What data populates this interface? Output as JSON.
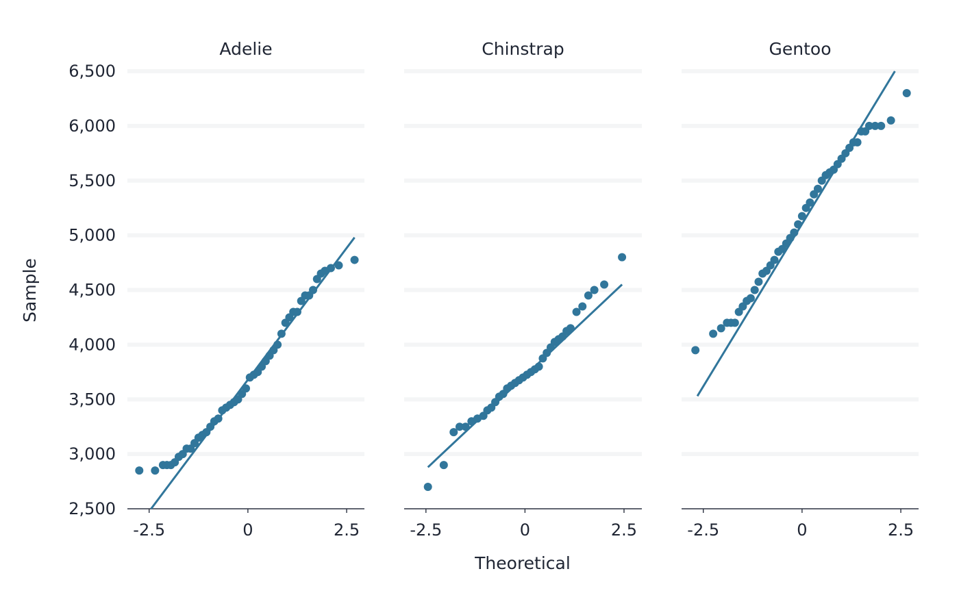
{
  "chart_data": {
    "type": "scatter",
    "subtype": "qq-plot",
    "xlabel": "Theoretical",
    "ylabel": "Sample",
    "color": "#31769b",
    "ylim": [
      2500,
      6500
    ],
    "y_ticks": [
      2500,
      3000,
      3500,
      4000,
      4500,
      5000,
      5500,
      6000,
      6500
    ],
    "y_tick_labels": [
      "2,500",
      "3,000",
      "3,500",
      "4,000",
      "4,500",
      "5,000",
      "5,500",
      "6,000",
      "6,500"
    ],
    "x_ticks": [
      -2.5,
      0,
      2.5
    ],
    "x_tick_labels": [
      "-2.5",
      "0",
      "2.5"
    ],
    "grid": true,
    "panels": [
      {
        "name": "Adelie",
        "xlim": [
          -3.05,
          2.95
        ],
        "line": {
          "x": [
            -2.45,
            2.7
          ],
          "y": [
            2500,
            4980
          ]
        },
        "points": {
          "x": [
            -2.75,
            -2.35,
            -2.15,
            -2.05,
            -1.95,
            -1.85,
            -1.75,
            -1.65,
            -1.55,
            -1.45,
            -1.35,
            -1.25,
            -1.15,
            -1.05,
            -0.95,
            -0.85,
            -0.75,
            -0.65,
            -0.55,
            -0.45,
            -0.35,
            -0.25,
            -0.15,
            -0.05,
            0.05,
            0.15,
            0.25,
            0.35,
            0.45,
            0.55,
            0.65,
            0.75,
            0.85,
            0.95,
            1.05,
            1.15,
            1.25,
            1.35,
            1.45,
            1.55,
            1.65,
            1.75,
            1.85,
            1.95,
            2.1,
            2.3,
            2.7
          ],
          "y": [
            2850,
            2850,
            2900,
            2900,
            2900,
            2925,
            2975,
            3000,
            3050,
            3050,
            3100,
            3150,
            3175,
            3200,
            3250,
            3300,
            3325,
            3400,
            3425,
            3450,
            3475,
            3500,
            3550,
            3600,
            3700,
            3725,
            3750,
            3800,
            3850,
            3900,
            3950,
            4000,
            4100,
            4200,
            4250,
            4300,
            4300,
            4400,
            4450,
            4450,
            4500,
            4600,
            4650,
            4675,
            4700,
            4725,
            4775
          ]
        }
      },
      {
        "name": "Chinstrap",
        "xlim": [
          -3.05,
          2.95
        ],
        "line": {
          "x": [
            -2.45,
            2.45
          ],
          "y": [
            2880,
            4550
          ]
        },
        "points": {
          "x": [
            -2.45,
            -2.05,
            -1.8,
            -1.65,
            -1.5,
            -1.35,
            -1.2,
            -1.05,
            -0.95,
            -0.85,
            -0.75,
            -0.65,
            -0.55,
            -0.45,
            -0.35,
            -0.25,
            -0.15,
            -0.05,
            0.05,
            0.15,
            0.25,
            0.35,
            0.45,
            0.55,
            0.65,
            0.75,
            0.85,
            0.95,
            1.05,
            1.15,
            1.3,
            1.45,
            1.6,
            1.75,
            2.0,
            2.45
          ],
          "y": [
            2700,
            2900,
            3200,
            3250,
            3250,
            3300,
            3325,
            3350,
            3400,
            3425,
            3475,
            3525,
            3550,
            3600,
            3625,
            3650,
            3675,
            3700,
            3725,
            3750,
            3775,
            3800,
            3875,
            3925,
            3975,
            4025,
            4050,
            4075,
            4125,
            4150,
            4300,
            4350,
            4450,
            4500,
            4550,
            4800
          ]
        }
      },
      {
        "name": "Gentoo",
        "xlim": [
          -3.05,
          2.95
        ],
        "line": {
          "x": [
            -2.65,
            2.35
          ],
          "y": [
            3530,
            6500
          ]
        },
        "points": {
          "x": [
            -2.7,
            -2.25,
            -2.05,
            -1.9,
            -1.8,
            -1.7,
            -1.6,
            -1.5,
            -1.4,
            -1.3,
            -1.2,
            -1.1,
            -1.0,
            -0.9,
            -0.8,
            -0.7,
            -0.6,
            -0.5,
            -0.4,
            -0.3,
            -0.2,
            -0.1,
            0.0,
            0.1,
            0.2,
            0.3,
            0.4,
            0.5,
            0.6,
            0.7,
            0.8,
            0.9,
            1.0,
            1.1,
            1.2,
            1.3,
            1.4,
            1.5,
            1.6,
            1.7,
            1.85,
            2.0,
            2.25,
            2.65
          ],
          "y": [
            3950,
            4100,
            4150,
            4200,
            4200,
            4200,
            4300,
            4350,
            4400,
            4425,
            4500,
            4575,
            4650,
            4675,
            4725,
            4775,
            4850,
            4875,
            4925,
            4975,
            5025,
            5100,
            5175,
            5250,
            5300,
            5375,
            5425,
            5500,
            5550,
            5575,
            5600,
            5650,
            5700,
            5750,
            5800,
            5850,
            5850,
            5950,
            5950,
            6000,
            6000,
            6000,
            6050,
            6300
          ]
        }
      }
    ]
  }
}
